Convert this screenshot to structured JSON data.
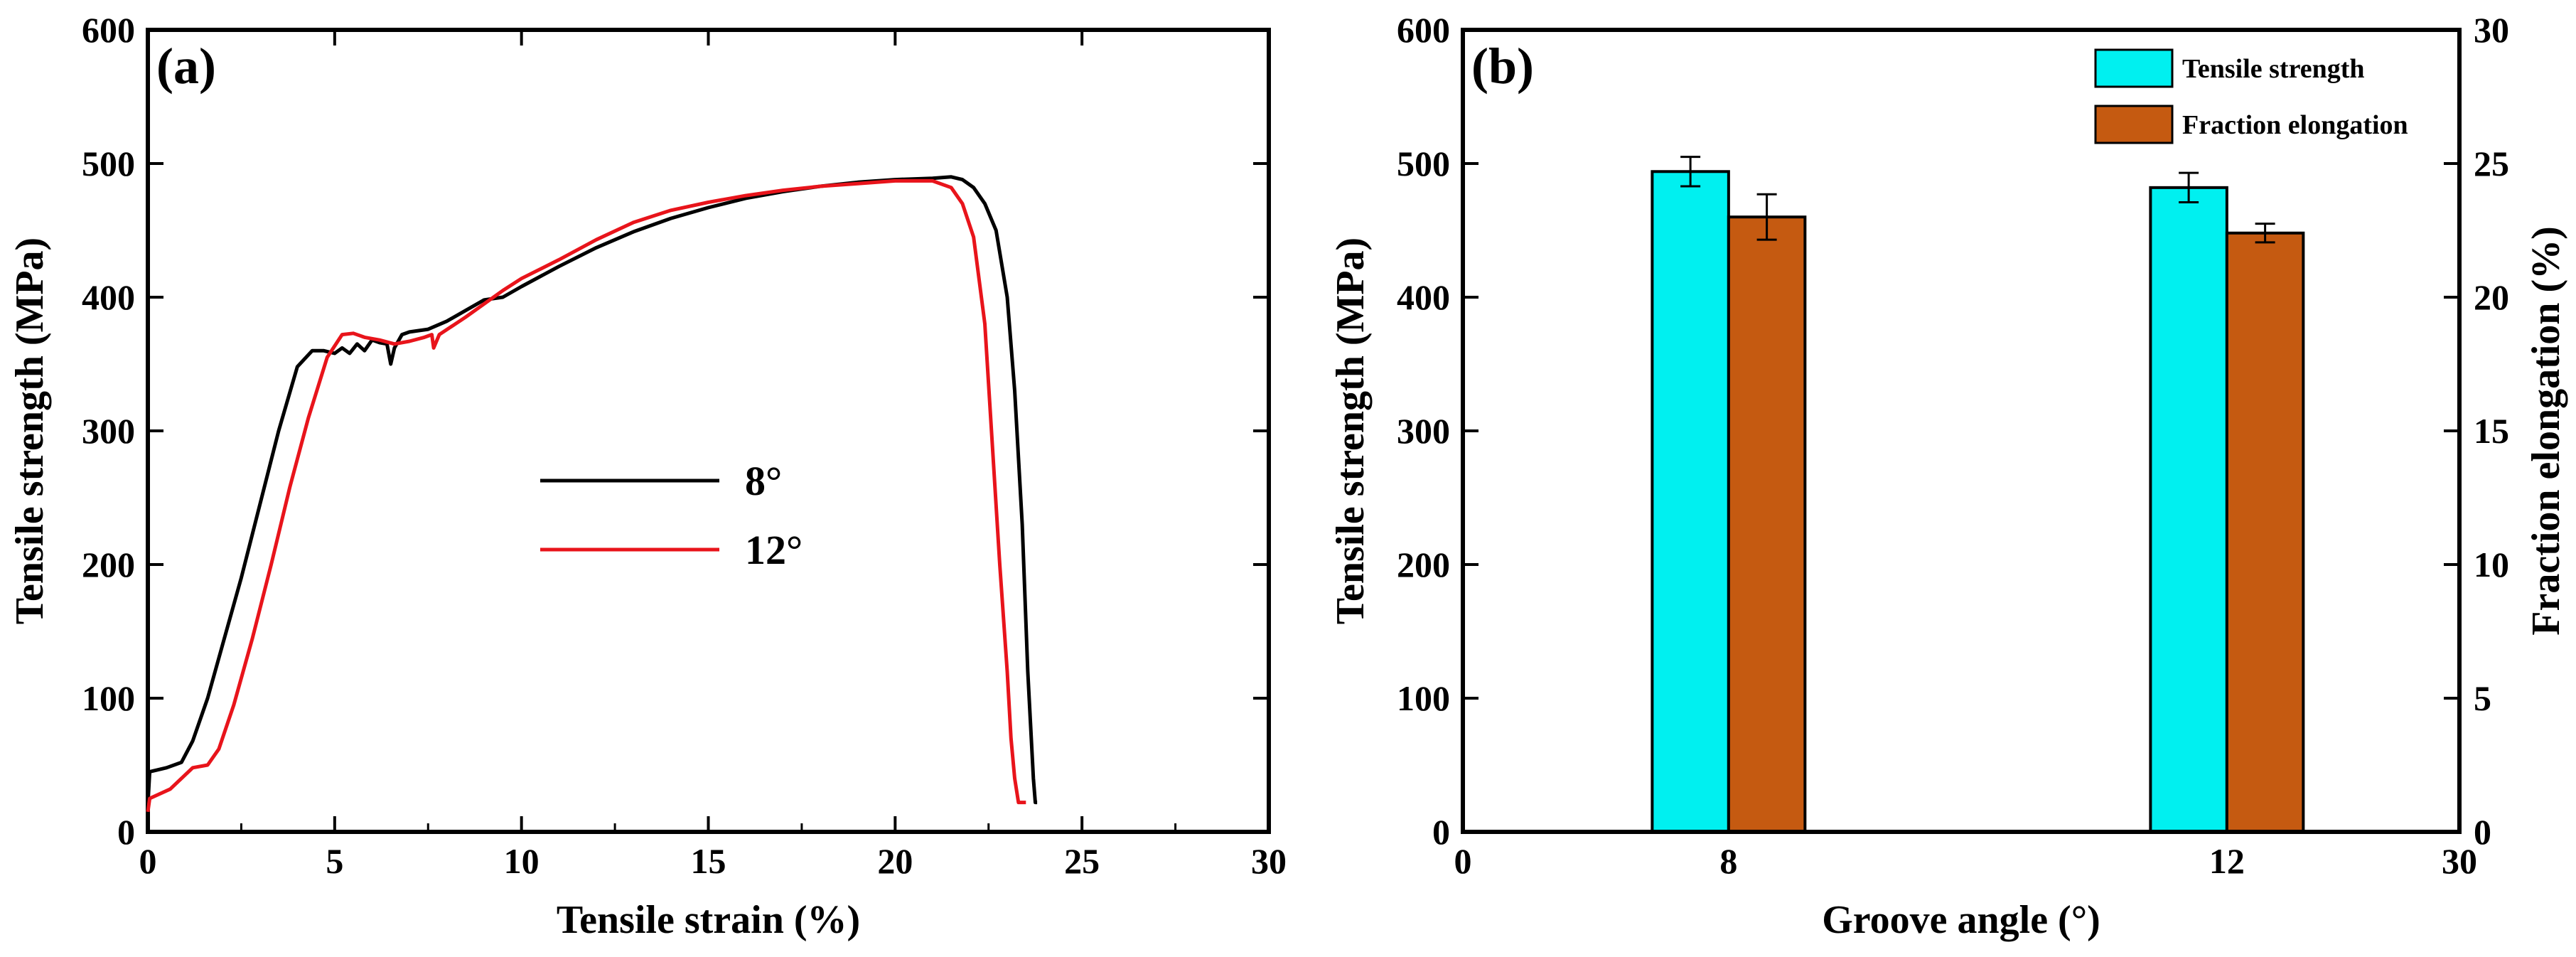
{
  "chart_data": [
    {
      "type": "line",
      "panel_label": "(a)",
      "xlabel": "Tensile strain (%)",
      "ylabel": "Tensile strength (MPa)",
      "xlim": [
        0,
        30
      ],
      "ylim": [
        0,
        600
      ],
      "xticks": [
        0,
        5,
        10,
        15,
        20,
        25,
        30
      ],
      "yticks": [
        0,
        100,
        200,
        300,
        400,
        500,
        600
      ],
      "legend_position": "center",
      "series": [
        {
          "name": "8°",
          "color": "#000000",
          "x": [
            0,
            0.05,
            0.5,
            0.9,
            1.2,
            1.6,
            2.0,
            2.5,
            3.0,
            3.5,
            4.0,
            4.4,
            4.7,
            5.0,
            5.2,
            5.4,
            5.6,
            5.8,
            6.0,
            6.2,
            6.4,
            6.5,
            6.6,
            6.8,
            7.0,
            7.5,
            8.0,
            8.5,
            9.0,
            9.5,
            10,
            11,
            12,
            13,
            14,
            15,
            16,
            17,
            18,
            19,
            20,
            21,
            21.5,
            21.8,
            22.1,
            22.4,
            22.7,
            23.0,
            23.2,
            23.4,
            23.55,
            23.7,
            23.75,
            23.8
          ],
          "y": [
            20,
            45,
            48,
            52,
            68,
            100,
            140,
            190,
            245,
            300,
            348,
            360,
            360,
            358,
            362,
            358,
            365,
            360,
            368,
            366,
            365,
            350,
            362,
            372,
            374,
            376,
            382,
            390,
            398,
            400,
            408,
            423,
            437,
            449,
            459,
            467,
            474,
            479,
            483,
            486,
            488,
            489,
            490,
            488,
            482,
            470,
            450,
            400,
            330,
            230,
            120,
            40,
            22,
            22
          ],
          "y_note": "x_values_in_percent_strain"
        },
        {
          "name": "12°",
          "color": "#e8141b",
          "x": [
            0,
            0.05,
            0.6,
            1.2,
            1.6,
            1.9,
            2.3,
            2.8,
            3.3,
            3.8,
            4.3,
            4.8,
            5.2,
            5.5,
            5.8,
            6.2,
            6.6,
            7.0,
            7.4,
            7.6,
            7.65,
            7.8,
            8.5,
            9.5,
            10,
            11,
            12,
            13,
            14,
            15,
            16,
            17,
            18,
            19,
            20,
            21,
            21.5,
            21.8,
            22.1,
            22.4,
            22.6,
            22.8,
            23.0,
            23.1,
            23.2,
            23.3,
            23.45,
            23.5
          ],
          "y": [
            15,
            25,
            32,
            48,
            50,
            62,
            95,
            145,
            200,
            258,
            310,
            355,
            372,
            373,
            370,
            368,
            365,
            367,
            370,
            372,
            362,
            372,
            385,
            405,
            414,
            428,
            443,
            456,
            465,
            471,
            476,
            480,
            483,
            485,
            487,
            487,
            482,
            470,
            445,
            380,
            290,
            200,
            120,
            70,
            40,
            22,
            22,
            22
          ]
        }
      ]
    },
    {
      "type": "bar",
      "panel_label": "(b)",
      "xlabel": "Groove angle (°)",
      "ylabel": "Tensile strength (MPa)",
      "ylabel_right": "Fraction elongation (%)",
      "xlim": [
        0,
        30
      ],
      "ylim": [
        0,
        600
      ],
      "ylim_right": [
        0,
        30
      ],
      "xticks": [
        "0",
        "8",
        "12",
        "30"
      ],
      "yticks": [
        0,
        100,
        200,
        300,
        400,
        500,
        600
      ],
      "yticks_right": [
        0,
        5,
        10,
        15,
        20,
        25,
        30
      ],
      "categories": [
        "8",
        "12"
      ],
      "category_positions": [
        8,
        23
      ],
      "legend_position": "top-right",
      "series": [
        {
          "name": "Tensile strength",
          "axis": "left",
          "color": "#00f0f0",
          "values": [
            494,
            482
          ],
          "errors": [
            11,
            11
          ]
        },
        {
          "name": "Fraction elongation",
          "axis": "right",
          "color": "#c55a11",
          "values": [
            23.0,
            22.4
          ],
          "errors": [
            0.85,
            0.35
          ]
        }
      ]
    }
  ]
}
